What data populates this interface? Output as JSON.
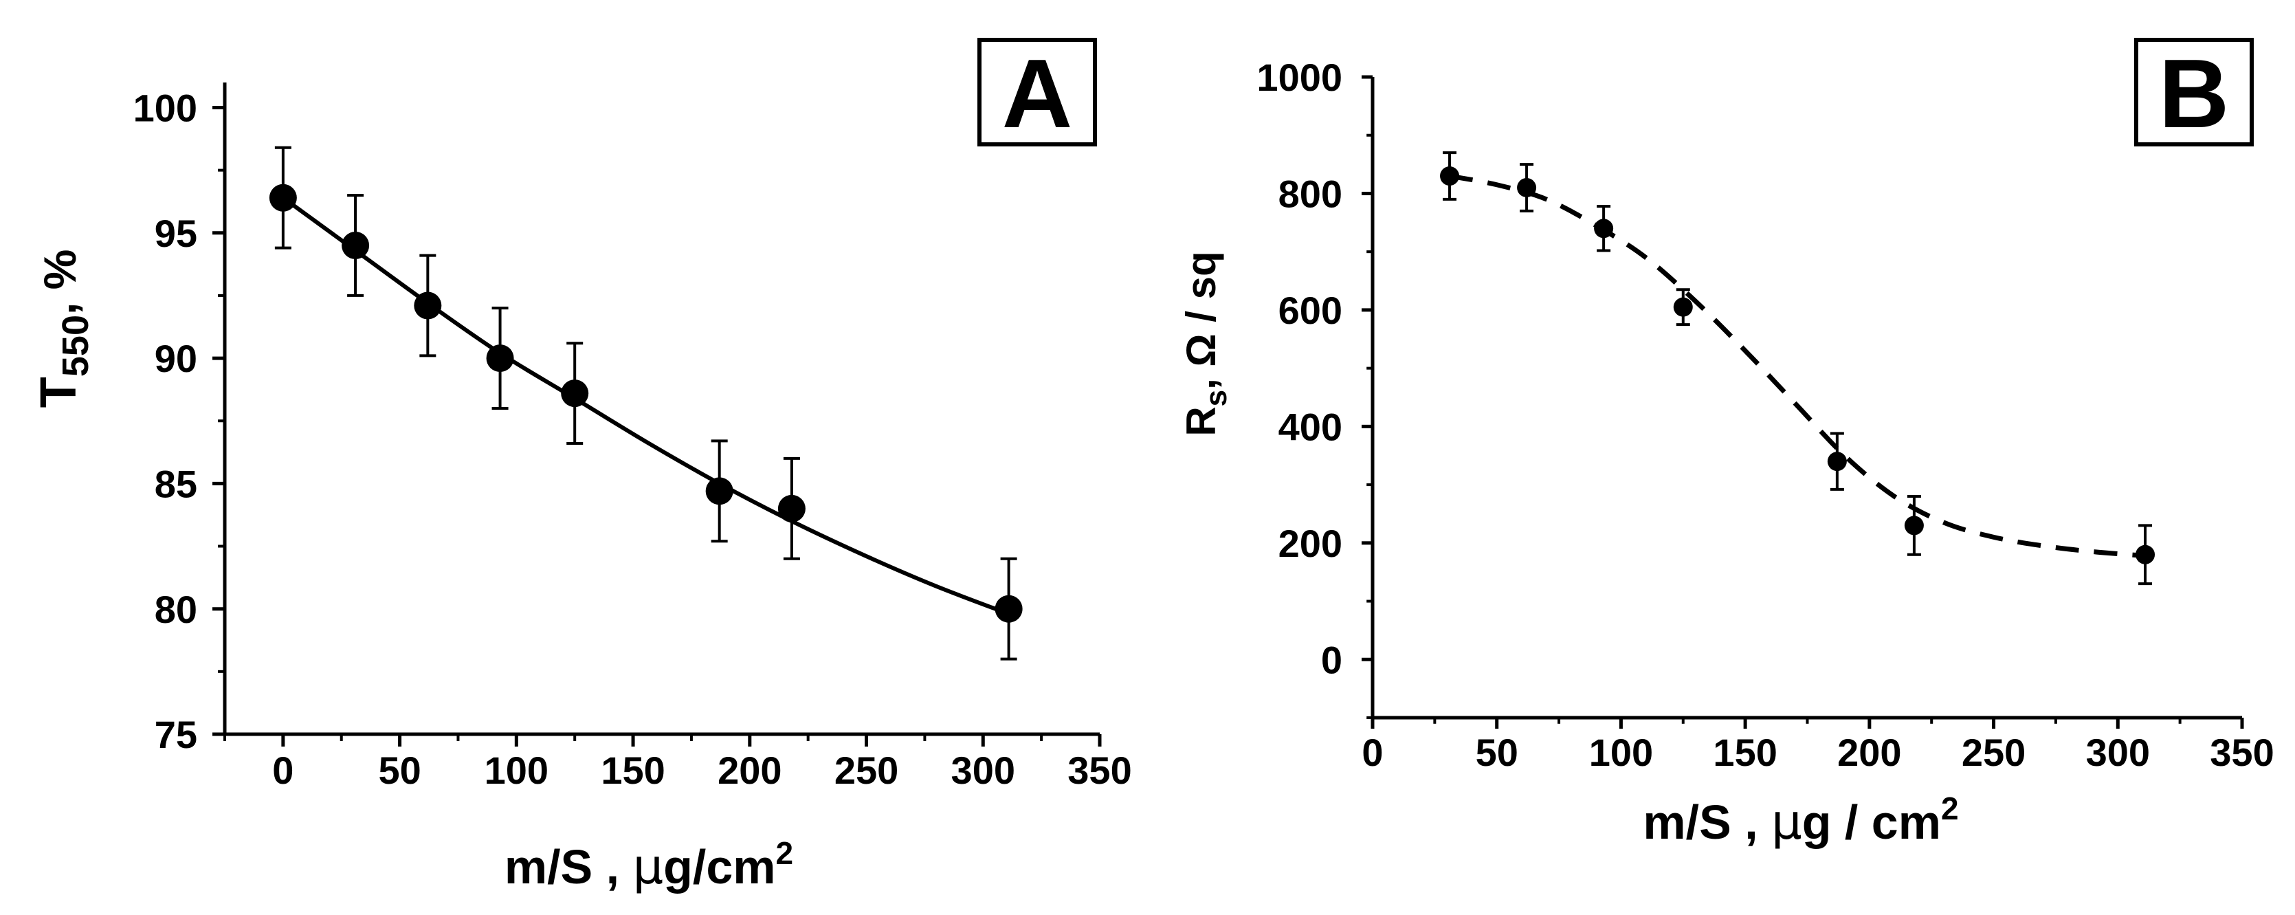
{
  "chart_data": [
    {
      "id": "A",
      "type": "scatter",
      "panel_label": "A",
      "title": "",
      "xlabel": {
        "main": "m/S , ",
        "mu": "μ",
        "rest": "g/cm",
        "sup": "2"
      },
      "ylabel": {
        "main": "T",
        "sub": "550",
        "rest": ", %"
      },
      "xlim": [
        -25,
        350
      ],
      "ylim": [
        75,
        101
      ],
      "xticks": [
        0,
        50,
        100,
        150,
        200,
        250,
        300,
        350
      ],
      "yticks": [
        75,
        80,
        85,
        90,
        95,
        100
      ],
      "series": [
        {
          "name": "T550",
          "marker": "circle",
          "x": [
            0,
            31,
            62,
            93,
            125,
            187,
            218,
            311
          ],
          "y": [
            96.4,
            94.5,
            92.1,
            90.0,
            88.6,
            84.7,
            84.0,
            80.0
          ],
          "yerr": [
            2.0,
            2.0,
            2.0,
            2.0,
            2.0,
            2.0,
            2.0,
            2.0
          ]
        }
      ],
      "fit": {
        "style": "solid",
        "x": [
          0,
          31,
          62,
          93,
          125,
          155,
          187,
          218,
          250,
          280,
          311
        ],
        "y": [
          96.4,
          94.3,
          92.2,
          90.2,
          88.4,
          86.7,
          85.0,
          83.5,
          82.1,
          80.9,
          79.8
        ]
      }
    },
    {
      "id": "B",
      "type": "scatter",
      "panel_label": "B",
      "title": "",
      "xlabel": {
        "main": "m/S , ",
        "mu": "μ",
        "rest": "g / cm",
        "sup": "2"
      },
      "ylabel": {
        "main": "R",
        "sub": "s",
        "rest": ", Ω / sq"
      },
      "xlim": [
        0,
        350
      ],
      "ylim": [
        -100,
        1000
      ],
      "xticks": [
        0,
        50,
        100,
        150,
        200,
        250,
        300,
        350
      ],
      "yticks": [
        0,
        200,
        400,
        600,
        800,
        1000
      ],
      "series": [
        {
          "name": "Rs",
          "marker": "circle",
          "x": [
            31,
            62,
            93,
            125,
            187,
            218,
            311
          ],
          "y": [
            830,
            810,
            740,
            605,
            340,
            230,
            180
          ],
          "yerr": [
            40,
            40,
            38,
            30,
            48,
            50,
            50
          ]
        }
      ],
      "fit": {
        "style": "dashed",
        "x": [
          31,
          50,
          70,
          90,
          110,
          130,
          150,
          170,
          190,
          210,
          230,
          250,
          270,
          290,
          311
        ],
        "y": [
          830,
          815,
          790,
          745,
          690,
          615,
          530,
          440,
          350,
          280,
          235,
          210,
          195,
          185,
          178
        ]
      }
    }
  ]
}
